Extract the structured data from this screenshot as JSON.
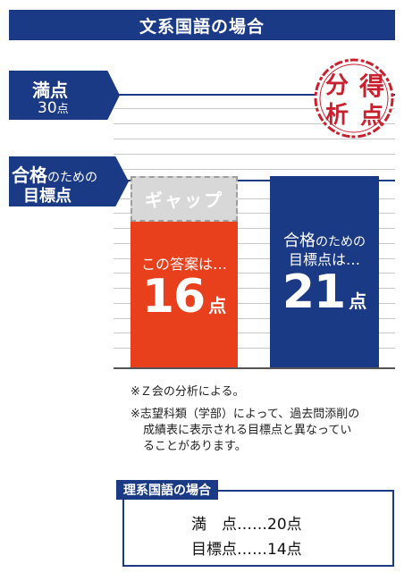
{
  "header": {
    "title": "文系国語の場合"
  },
  "labels": {
    "full_score": "満点",
    "full_score_value": "30",
    "full_score_unit": "点",
    "pass_main": "合格",
    "pass_sub": "のための",
    "pass_line2": "目標点"
  },
  "stamp": {
    "char1": "分",
    "char2": "得",
    "char3": "析",
    "char4": "点"
  },
  "chart_data": {
    "type": "bar",
    "max": 30,
    "categories": [
      "この答案は…",
      "合格のための目標点は…"
    ],
    "values": [
      16,
      21
    ],
    "unit": "点",
    "gap_label": "ギャップ",
    "colors": {
      "answer": "#e8401c",
      "target": "#1b3a86",
      "gap": "#d8d8d8"
    }
  },
  "bars": {
    "answer": {
      "label": "この答案は…",
      "value": "16",
      "unit": "点"
    },
    "target": {
      "label_main": "合格",
      "label_sub": "のための",
      "label_line2": "目標点は…",
      "value": "21",
      "unit": "点"
    },
    "gap_label": "ギャップ"
  },
  "notes": [
    "※Ｚ会の分析による。",
    "※志望科類（学部）によって、過去問添削の",
    "成績表に表示される目標点と異なってい",
    "ることがあります。"
  ],
  "science": {
    "tag": "理系国語の場合",
    "full_label": "満　点……",
    "full_value": "20",
    "target_label": "目標点……",
    "target_value": "14",
    "unit": "点"
  }
}
